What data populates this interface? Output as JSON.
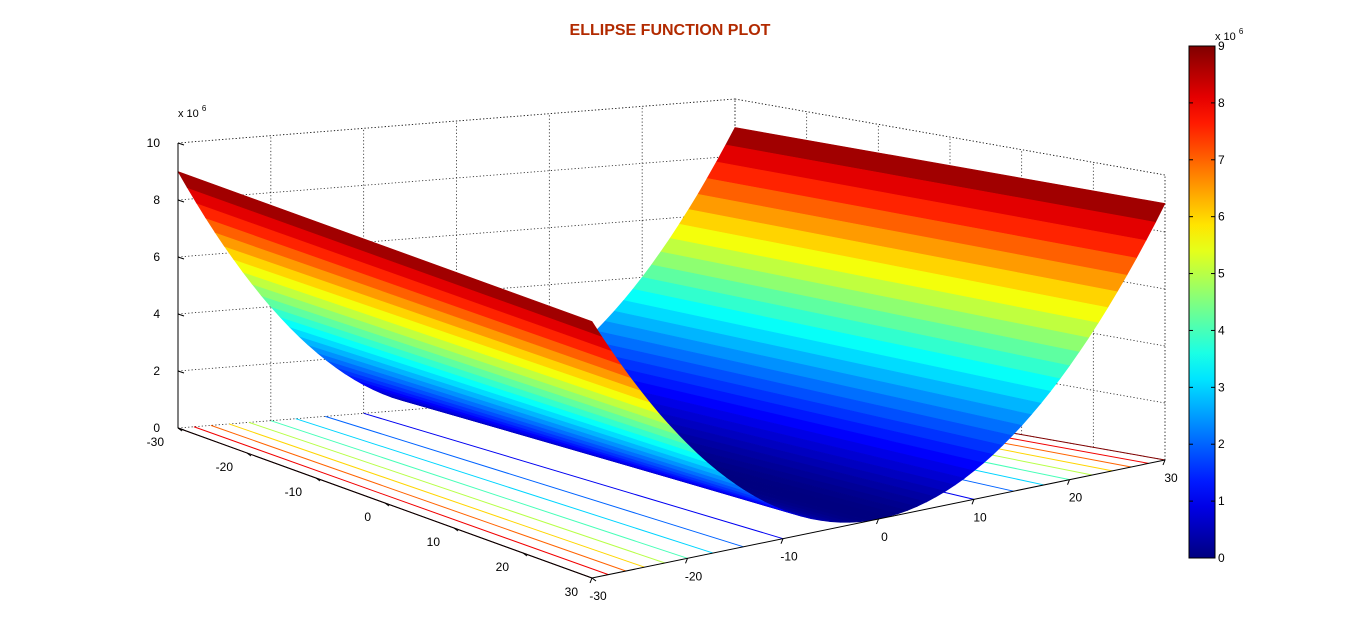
{
  "chart_data": {
    "type": "surface",
    "title": "ELLIPSE FUNCTION PLOT",
    "title_color": "#b22a00",
    "function": "z = 10000 * y^2",
    "x_range": [
      -30,
      30
    ],
    "y_range": [
      -30,
      30
    ],
    "x_ticks": [
      "-30",
      "-20",
      "-10",
      "0",
      "10",
      "20",
      "30"
    ],
    "y_ticks": [
      "-30",
      "-20",
      "-10",
      "0",
      "10",
      "20",
      "30"
    ],
    "z_ticks": [
      "0",
      "2",
      "4",
      "6",
      "8",
      "10"
    ],
    "z_multiplier": "x 10",
    "z_exponent": "6",
    "zlim": [
      0,
      10
    ],
    "z_scale": 1000000,
    "colormap": "jet",
    "colorbar": {
      "ticks": [
        "0",
        "1",
        "2",
        "3",
        "4",
        "5",
        "6",
        "7",
        "8",
        "9"
      ],
      "range": [
        0,
        9
      ],
      "multiplier": "x 10",
      "exponent": "6"
    },
    "contour_levels_millions": [
      1,
      2,
      3,
      4,
      5,
      6,
      7,
      8,
      9
    ],
    "grid": true,
    "box": true
  }
}
